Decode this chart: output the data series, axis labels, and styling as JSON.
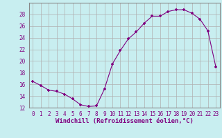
{
  "x": [
    0,
    1,
    2,
    3,
    4,
    5,
    6,
    7,
    8,
    9,
    10,
    11,
    12,
    13,
    14,
    15,
    16,
    17,
    18,
    19,
    20,
    21,
    22,
    23
  ],
  "y": [
    16.5,
    15.8,
    15.0,
    14.8,
    14.3,
    13.5,
    12.5,
    12.2,
    12.3,
    15.2,
    19.5,
    21.8,
    23.8,
    25.0,
    26.5,
    27.7,
    27.7,
    28.5,
    28.8,
    28.8,
    28.2,
    27.2,
    25.2,
    19.0
  ],
  "line_color": "#800080",
  "marker": "P",
  "marker_size": 2.5,
  "bg_color": "#c8eef0",
  "grid_color": "#b0b0b0",
  "xlabel": "Windchill (Refroidissement éolien,°C)",
  "ylim": [
    12,
    30
  ],
  "xlim": [
    -0.5,
    23.5
  ],
  "yticks": [
    12,
    14,
    16,
    18,
    20,
    22,
    24,
    26,
    28
  ],
  "xticks": [
    0,
    1,
    2,
    3,
    4,
    5,
    6,
    7,
    8,
    9,
    10,
    11,
    12,
    13,
    14,
    15,
    16,
    17,
    18,
    19,
    20,
    21,
    22,
    23
  ],
  "tick_color": "#800080",
  "label_color": "#800080",
  "spine_color": "#888888",
  "tick_fontsize": 5.5,
  "xlabel_fontsize": 6.5
}
